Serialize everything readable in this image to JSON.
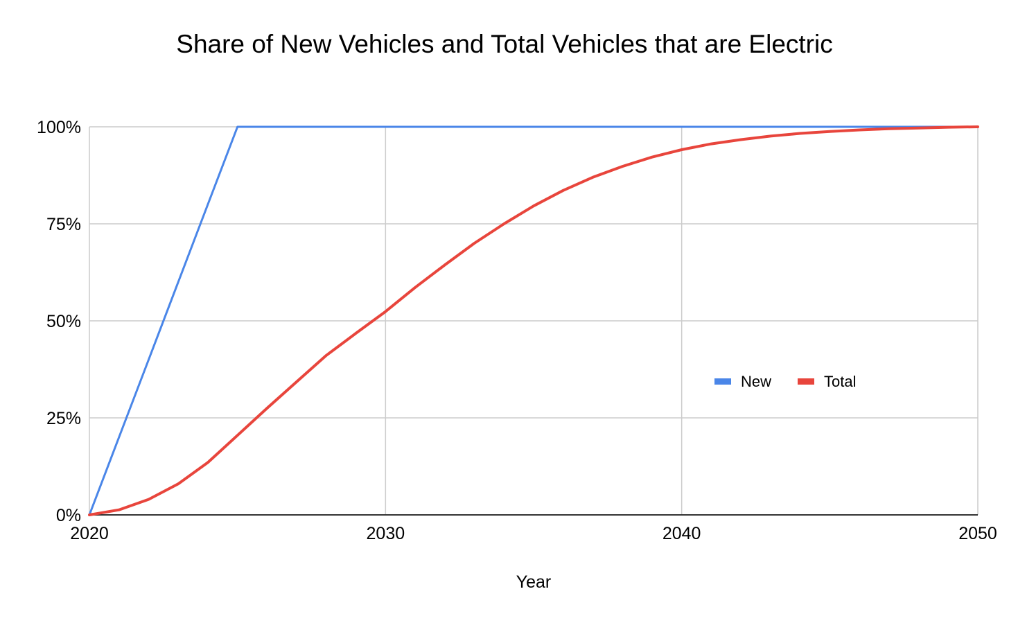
{
  "chart_data": {
    "type": "line",
    "title": "Share of New Vehicles and Total Vehicles that are Electric",
    "xlabel": "Year",
    "ylabel": "",
    "xlim": [
      2020,
      2050
    ],
    "ylim": [
      0,
      100
    ],
    "x_ticks": [
      2020,
      2030,
      2040,
      2050
    ],
    "x_tick_labels": [
      "2020",
      "2030",
      "2040",
      "2050"
    ],
    "y_ticks": [
      0,
      25,
      50,
      75,
      100
    ],
    "y_tick_labels": [
      "0%",
      "25%",
      "50%",
      "75%",
      "100%"
    ],
    "grid": true,
    "legend_position": "right-center",
    "series": [
      {
        "name": "New",
        "color": "#4a86e8",
        "x": [
          2020,
          2021,
          2022,
          2023,
          2024,
          2025,
          2030,
          2035,
          2040,
          2045,
          2050
        ],
        "values": [
          0,
          20,
          40,
          60,
          80,
          100,
          100,
          100,
          100,
          100,
          100
        ]
      },
      {
        "name": "Total",
        "color": "#e8453c",
        "x": [
          2020,
          2021,
          2022,
          2023,
          2024,
          2025,
          2026,
          2027,
          2028,
          2029,
          2030,
          2031,
          2032,
          2033,
          2034,
          2035,
          2036,
          2037,
          2038,
          2039,
          2040,
          2041,
          2042,
          2043,
          2044,
          2045,
          2046,
          2047,
          2048,
          2049,
          2050
        ],
        "values": [
          0,
          1.3,
          4,
          8,
          13.5,
          20.5,
          27.5,
          34.3,
          41.1,
          46.8,
          52.4,
          58.6,
          64.4,
          70,
          75,
          79.6,
          83.6,
          87,
          89.8,
          92.2,
          94.1,
          95.6,
          96.7,
          97.6,
          98.3,
          98.8,
          99.2,
          99.5,
          99.7,
          99.9,
          100
        ]
      }
    ]
  }
}
